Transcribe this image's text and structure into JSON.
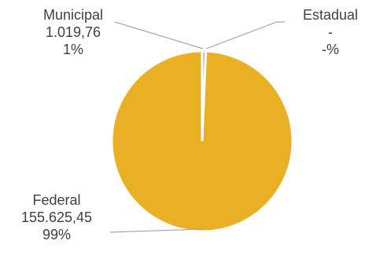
{
  "chart_data": {
    "type": "pie",
    "title": "",
    "categories": [
      "Federal",
      "Municipal",
      "Estadual"
    ],
    "values": [
      155625.45,
      1019.76,
      0
    ],
    "series": [
      {
        "values": [
          155625.45,
          1019.76,
          0
        ]
      }
    ],
    "colors": [
      "#E9B024",
      "#A5A5A5",
      "#5B9BD5"
    ],
    "legend": "none",
    "data_labels": [
      {
        "category": "Municipal",
        "value": "1.019,76",
        "percent": "1%"
      },
      {
        "category": "Estadual",
        "value": "-",
        "percent": "-%"
      },
      {
        "category": "Federal",
        "value": "155.625,45",
        "percent": "99%"
      }
    ],
    "leader_line_color": "#A6A6A6",
    "slice_border_color": "#FFFFFF"
  }
}
